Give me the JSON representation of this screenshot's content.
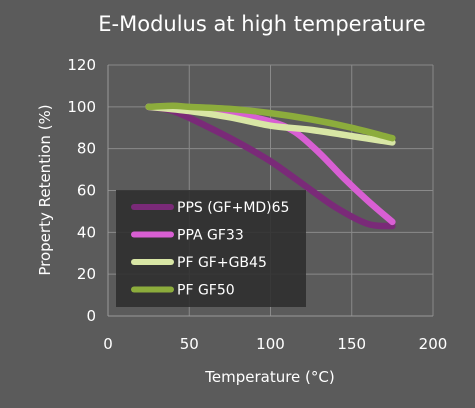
{
  "chart_data": {
    "type": "line",
    "title": "E-Modulus at high temperature",
    "xlabel": "Temperature (°C)",
    "ylabel": "Property Retention (%)",
    "xlim": [
      0,
      200
    ],
    "ylim": [
      0,
      120
    ],
    "xticks": [
      "0",
      "50",
      "100",
      "150",
      "200"
    ],
    "yticks": [
      "0",
      "20",
      "40",
      "60",
      "80",
      "100",
      "120"
    ],
    "grid": true,
    "legend_position": "bottom-left",
    "series": [
      {
        "name": "PPS (GF+MD)65",
        "color": "#7a2a78",
        "x": [
          25,
          40,
          60,
          80,
          100,
          120,
          140,
          160,
          175
        ],
        "y": [
          100,
          98,
          91,
          83,
          74,
          63,
          52,
          44,
          43
        ]
      },
      {
        "name": "PPA GF33",
        "color": "#d85fd3",
        "x": [
          25,
          50,
          75,
          100,
          115,
          130,
          145,
          160,
          175
        ],
        "y": [
          100,
          99,
          97,
          93,
          88,
          78,
          66,
          55,
          45
        ]
      },
      {
        "name": "PF GF+GB45",
        "color": "#d8e6a5",
        "x": [
          25,
          50,
          75,
          100,
          125,
          150,
          175
        ],
        "y": [
          100,
          98,
          95,
          91,
          89,
          86,
          83
        ]
      },
      {
        "name": "PF GF50",
        "color": "#8cac3c",
        "x": [
          25,
          40,
          50,
          75,
          100,
          125,
          150,
          175
        ],
        "y": [
          100,
          100.5,
          100,
          99,
          97,
          94,
          90,
          85
        ]
      }
    ]
  }
}
